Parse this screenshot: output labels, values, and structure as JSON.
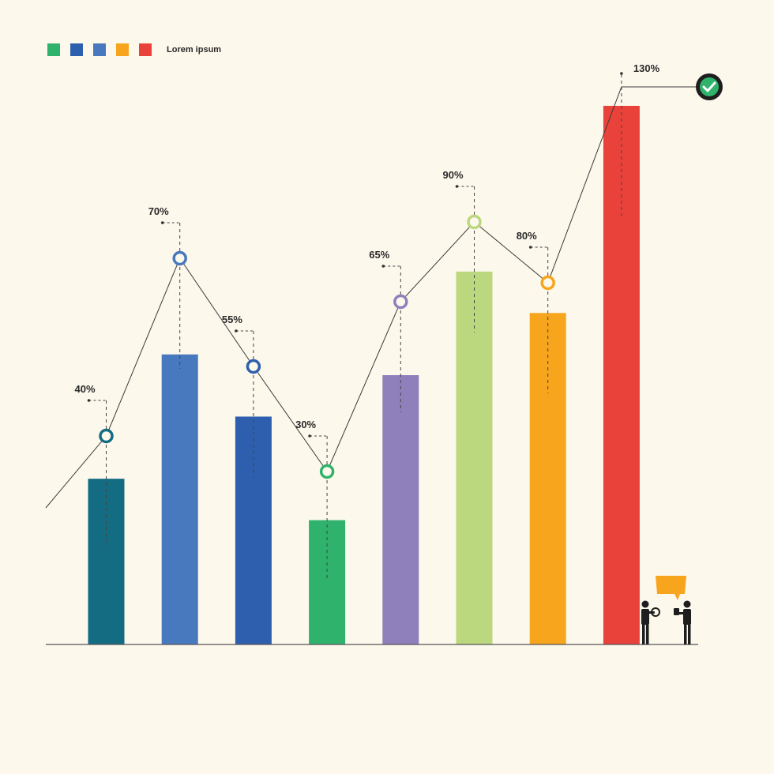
{
  "legend": {
    "label": "Lorem ipsum",
    "swatches": [
      "#2fb36c",
      "#2e5fae",
      "#4878bd",
      "#f6a51c",
      "#e9423a"
    ]
  },
  "chart_data": {
    "type": "bar",
    "title": "",
    "xlabel": "",
    "ylabel": "",
    "ylim": [
      0,
      140
    ],
    "categories": [
      "",
      "",
      "",
      "",
      "",
      "",
      "",
      ""
    ],
    "series": [
      {
        "values": [
          40,
          70,
          55,
          30,
          65,
          90,
          80,
          130
        ],
        "colors": [
          "#136c82",
          "#4878bd",
          "#2e5fae",
          "#2fb36c",
          "#8f80bb",
          "#bbd87e",
          "#f6a51c",
          "#e9423a"
        ]
      }
    ],
    "labels": [
      "40%",
      "70%",
      "55%",
      "30%",
      "65%",
      "90%",
      "80%",
      "130%"
    ],
    "trend_line": true,
    "grid": false,
    "legend_position": "top-left",
    "annotations": [
      "check-icon",
      "speech-bubble-icon"
    ],
    "colors": {
      "trend": "#3a3a3a",
      "axis": "#555555",
      "check": "#2fb36c",
      "bubble": "#f6a51c",
      "figures": "#1e1e1e"
    }
  }
}
